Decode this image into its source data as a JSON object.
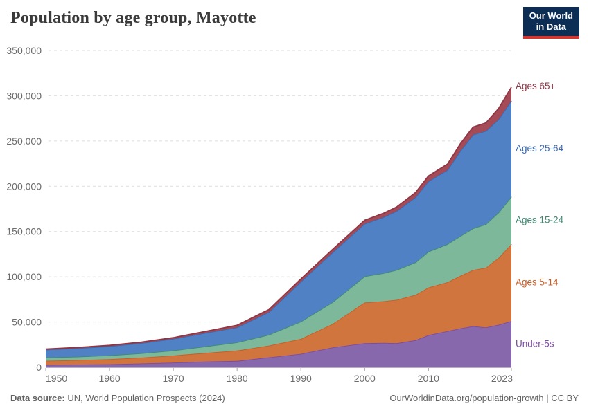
{
  "header": {
    "title": "Population by age group, Mayotte",
    "logo": {
      "line1": "Our World",
      "line2": "in Data",
      "bg": "#0d2e54",
      "accent": "#d8352e"
    }
  },
  "footer": {
    "source_label": "Data source:",
    "source_text": " UN, World Population Prospects (2024)",
    "right_link": "OurWorldinData.org/population-growth",
    "right_license": " | CC BY"
  },
  "chart_data": {
    "type": "area",
    "stacked": true,
    "title": "Population by age group, Mayotte",
    "xlabel": "",
    "ylabel": "",
    "xlim": [
      1950,
      2023
    ],
    "ylim": [
      0,
      350000
    ],
    "grid": "horizontal-dashed",
    "legend_position": "right-edge-labels",
    "x": [
      1950,
      1955,
      1960,
      1965,
      1970,
      1975,
      1980,
      1985,
      1990,
      1995,
      2000,
      2003,
      2005,
      2008,
      2010,
      2013,
      2015,
      2017,
      2019,
      2021,
      2023
    ],
    "series": [
      {
        "name": "Under-5s",
        "color": "#7c4aa4",
        "fill": "#8768ad",
        "values": [
          2600,
          3000,
          3400,
          4200,
          5200,
          6300,
          7000,
          11000,
          14800,
          22000,
          26500,
          27000,
          26500,
          30000,
          35500,
          40000,
          43000,
          45500,
          44000,
          47000,
          51000
        ]
      },
      {
        "name": "Ages 5-14",
        "color": "#ca5b23",
        "fill": "#d0753e",
        "values": [
          4600,
          5000,
          5600,
          6500,
          7800,
          9500,
          11500,
          13000,
          16500,
          26000,
          45000,
          46000,
          48000,
          50000,
          52700,
          54000,
          58000,
          62000,
          66000,
          74000,
          85000
        ]
      },
      {
        "name": "Ages 15-24",
        "color": "#3d8a74",
        "fill": "#7db89b",
        "values": [
          3600,
          3800,
          4200,
          4800,
          5600,
          7200,
          9000,
          12000,
          19100,
          24000,
          29000,
          31000,
          33000,
          36000,
          39600,
          42000,
          44000,
          46000,
          48000,
          50000,
          52500
        ]
      },
      {
        "name": "Ages 25-64",
        "color": "#3968b0",
        "fill": "#5181c5",
        "values": [
          8600,
          9200,
          10000,
          11200,
          12800,
          14800,
          16500,
          25000,
          44100,
          55000,
          58000,
          62000,
          65000,
          72000,
          77600,
          82000,
          94000,
          103500,
          103000,
          103000,
          106000
        ]
      },
      {
        "name": "Ages 65+",
        "color": "#8e3644",
        "fill": "#a44b57",
        "values": [
          800,
          900,
          1000,
          1100,
          1300,
          1800,
          2500,
          2800,
          3100,
          3400,
          4000,
          4300,
          4600,
          5200,
          6000,
          6500,
          8000,
          8500,
          9000,
          12000,
          15000
        ]
      }
    ],
    "x_ticks": [
      1950,
      1960,
      1970,
      1980,
      1990,
      2000,
      2010,
      2023
    ],
    "y_ticks": [
      0,
      50000,
      100000,
      150000,
      200000,
      250000,
      300000,
      350000
    ]
  }
}
